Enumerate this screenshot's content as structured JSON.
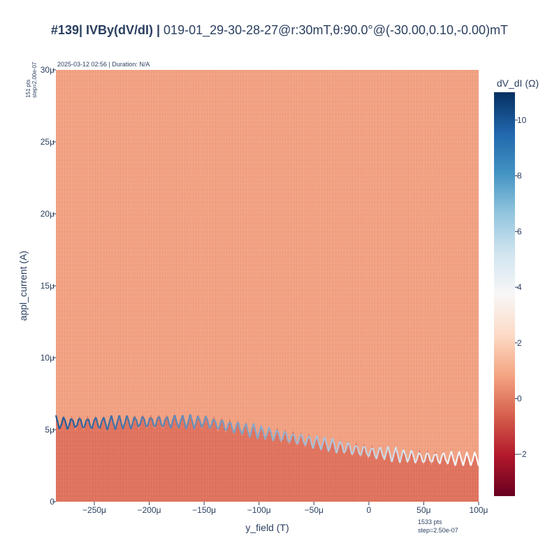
{
  "header": {
    "title_bold": "#139| IVBy(dV/dI) |",
    "title_rest": " 019-01_29-30-28-27@r:30mT,θ:90.0°@(-30.00,0.10,-0.00)mT"
  },
  "annotations": {
    "timestamp": "2025-03-12 02:56 | Duration: N/A",
    "y_points": "151 pts",
    "y_step": "step=2.00e-07",
    "x_points": "1533 pts",
    "x_step": "step=2.50e-07"
  },
  "chart_data": {
    "type": "heatmap",
    "xlabel": "y_field (T)",
    "ylabel": "appl_current (A)",
    "xlim": [
      -0.000285,
      0.0001
    ],
    "ylim": [
      0,
      3e-05
    ],
    "x_ticks": [
      {
        "value": -0.00025,
        "label": "−250μ"
      },
      {
        "value": -0.0002,
        "label": "−200μ"
      },
      {
        "value": -0.00015,
        "label": "−150μ"
      },
      {
        "value": -0.0001,
        "label": "−100μ"
      },
      {
        "value": -5e-05,
        "label": "−50μ"
      },
      {
        "value": 0,
        "label": "0"
      },
      {
        "value": 5e-05,
        "label": "50μ"
      },
      {
        "value": 0.0001,
        "label": "100μ"
      }
    ],
    "y_ticks": [
      {
        "value": 0,
        "label": "0"
      },
      {
        "value": 5e-06,
        "label": "5μ"
      },
      {
        "value": 1e-05,
        "label": "10μ"
      },
      {
        "value": 1.5e-05,
        "label": "15μ"
      },
      {
        "value": 2e-05,
        "label": "20μ"
      },
      {
        "value": 2.5e-05,
        "label": "25μ"
      },
      {
        "value": 3e-05,
        "label": "30μ"
      }
    ],
    "colorbar": {
      "title": "dV_dI (Ω)",
      "range": [
        -3.5,
        11
      ],
      "colorscale": "RdBu",
      "ticks": [
        {
          "value": -2,
          "label": "−2"
        },
        {
          "value": 0,
          "label": "0"
        },
        {
          "value": 2,
          "label": "2"
        },
        {
          "value": 4,
          "label": "4"
        },
        {
          "value": 6,
          "label": "6"
        },
        {
          "value": 8,
          "label": "8"
        },
        {
          "value": 10,
          "label": "10"
        }
      ]
    },
    "regions": {
      "normal_state_value": 1.2,
      "superconducting_value": 0.0
    },
    "critical_current_envelope": [
      {
        "x": -0.000285,
        "y": 6e-06
      },
      {
        "x": -0.00025,
        "y": 6e-06
      },
      {
        "x": -0.0002,
        "y": 6.1e-06
      },
      {
        "x": -0.00015,
        "y": 6.1e-06
      },
      {
        "x": -0.0001,
        "y": 5.4e-06
      },
      {
        "x": -5e-05,
        "y": 4.7e-06
      },
      {
        "x": 0,
        "y": 4e-06
      },
      {
        "x": 5e-05,
        "y": 3.6e-06
      },
      {
        "x": 0.0001,
        "y": 3.5e-06
      }
    ],
    "oscillation_period": 7.2e-06,
    "oscillation_amplitude": 1.2e-06,
    "peak_value_range": [
      3.0,
      10.5
    ]
  },
  "colors": {
    "normal_state": "#f2a283",
    "superconducting": "#e0745f",
    "peak_high": "#1f5a99",
    "peak_low": "#ffffff"
  }
}
